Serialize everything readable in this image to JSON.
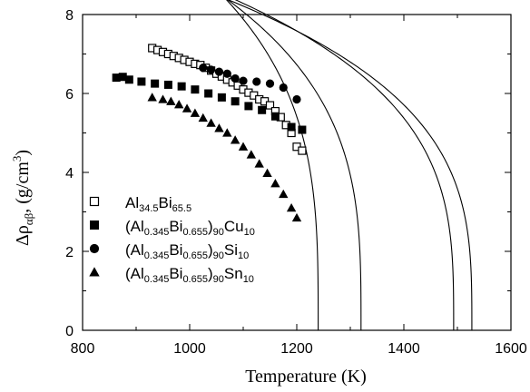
{
  "chart_data": {
    "type": "scatter",
    "title": "",
    "xlabel": "Temperature (K)",
    "ylabel": {
      "main": "Δρ",
      "sub": "αβ",
      "mid": ", (g/cm",
      "sup": "3",
      "end": ")"
    },
    "xlim": [
      800,
      1600
    ],
    "ylim": [
      0,
      8
    ],
    "x_ticks": [
      "800",
      "1000",
      "1200",
      "1400",
      "1600"
    ],
    "y_ticks": [
      "0",
      "2",
      "4",
      "6",
      "8"
    ],
    "legend_position": "lower-left",
    "series": [
      {
        "key": "s1",
        "marker": "open-square",
        "label": [
          {
            "t": "Al"
          },
          {
            "t": "34.5",
            "sub": true
          },
          {
            "t": "Bi"
          },
          {
            "t": "65.5",
            "sub": true
          }
        ],
        "points": [
          [
            930,
            7.15
          ],
          [
            940,
            7.1
          ],
          [
            950,
            7.05
          ],
          [
            960,
            7.0
          ],
          [
            970,
            6.95
          ],
          [
            980,
            6.9
          ],
          [
            990,
            6.85
          ],
          [
            1000,
            6.8
          ],
          [
            1010,
            6.75
          ],
          [
            1020,
            6.72
          ],
          [
            1030,
            6.65
          ],
          [
            1040,
            6.58
          ],
          [
            1050,
            6.5
          ],
          [
            1060,
            6.43
          ],
          [
            1070,
            6.35
          ],
          [
            1080,
            6.28
          ],
          [
            1090,
            6.2
          ],
          [
            1100,
            6.1
          ],
          [
            1110,
            6.02
          ],
          [
            1120,
            5.95
          ],
          [
            1130,
            5.85
          ],
          [
            1140,
            5.8
          ],
          [
            1150,
            5.7
          ],
          [
            1160,
            5.55
          ],
          [
            1170,
            5.4
          ],
          [
            1180,
            5.2
          ],
          [
            1190,
            5.0
          ],
          [
            1200,
            4.65
          ],
          [
            1210,
            4.55
          ]
        ],
        "fit": {
          "tc": 1527,
          "a": 1.335,
          "beta": 0.3
        }
      },
      {
        "key": "s2",
        "marker": "filled-square",
        "label": [
          {
            "t": "(Al"
          },
          {
            "t": "0.345",
            "sub": true
          },
          {
            "t": "Bi"
          },
          {
            "t": "0.655",
            "sub": true
          },
          {
            "t": ")"
          },
          {
            "t": "90",
            "sub": true
          },
          {
            "t": "Cu"
          },
          {
            "t": "10",
            "sub": true
          }
        ],
        "points": [
          [
            863,
            6.4
          ],
          [
            875,
            6.42
          ],
          [
            887,
            6.35
          ],
          [
            910,
            6.3
          ],
          [
            935,
            6.25
          ],
          [
            960,
            6.22
          ],
          [
            985,
            6.18
          ],
          [
            1010,
            6.1
          ],
          [
            1035,
            6.0
          ],
          [
            1060,
            5.9
          ],
          [
            1085,
            5.8
          ],
          [
            1110,
            5.68
          ],
          [
            1135,
            5.58
          ],
          [
            1160,
            5.42
          ],
          [
            1190,
            5.15
          ],
          [
            1210,
            5.08
          ]
        ],
        "fit": {
          "tc": 1320,
          "a": 1.6,
          "beta": 0.3
        }
      },
      {
        "key": "s3",
        "marker": "filled-circle",
        "label": [
          {
            "t": "(Al"
          },
          {
            "t": "0.345",
            "sub": true
          },
          {
            "t": "Bi"
          },
          {
            "t": "0.655",
            "sub": true
          },
          {
            "t": ")"
          },
          {
            "t": "90",
            "sub": true
          },
          {
            "t": "Si"
          },
          {
            "t": "10",
            "sub": true
          }
        ],
        "points": [
          [
            1025,
            6.65
          ],
          [
            1040,
            6.6
          ],
          [
            1055,
            6.55
          ],
          [
            1070,
            6.5
          ],
          [
            1085,
            6.38
          ],
          [
            1100,
            6.32
          ],
          [
            1125,
            6.3
          ],
          [
            1150,
            6.25
          ],
          [
            1175,
            6.15
          ],
          [
            1200,
            5.85
          ]
        ],
        "fit": {
          "tc": 1493,
          "a": 1.38,
          "beta": 0.3
        }
      },
      {
        "key": "s4",
        "marker": "filled-triangle",
        "label": [
          {
            "t": "(Al"
          },
          {
            "t": "0.345",
            "sub": true
          },
          {
            "t": "Bi"
          },
          {
            "t": "0.655",
            "sub": true
          },
          {
            "t": ")"
          },
          {
            "t": "90",
            "sub": true
          },
          {
            "t": "Sn"
          },
          {
            "t": "10",
            "sub": true
          }
        ],
        "points": [
          [
            930,
            5.9
          ],
          [
            950,
            5.85
          ],
          [
            965,
            5.8
          ],
          [
            980,
            5.72
          ],
          [
            995,
            5.62
          ],
          [
            1010,
            5.5
          ],
          [
            1025,
            5.38
          ],
          [
            1040,
            5.25
          ],
          [
            1055,
            5.12
          ],
          [
            1070,
            5.0
          ],
          [
            1085,
            4.82
          ],
          [
            1100,
            4.65
          ],
          [
            1115,
            4.45
          ],
          [
            1130,
            4.22
          ],
          [
            1145,
            3.98
          ],
          [
            1160,
            3.72
          ],
          [
            1175,
            3.45
          ],
          [
            1190,
            3.1
          ],
          [
            1200,
            2.85
          ]
        ],
        "fit": {
          "tc": 1240,
          "a": 1.79,
          "beta": 0.3
        }
      }
    ]
  }
}
